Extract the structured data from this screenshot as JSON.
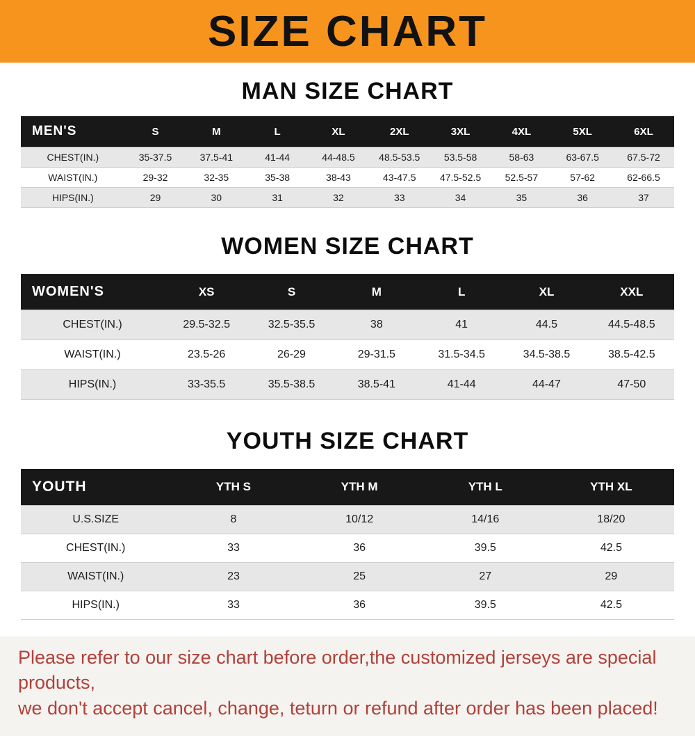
{
  "banner": {
    "title": "SIZE CHART"
  },
  "colors": {
    "banner_bg": "#f7941d",
    "header_bg": "#181818",
    "row_alt_bg": "#e7e7e7",
    "disclaimer_text": "#b0413b"
  },
  "chart_data": [
    {
      "type": "table",
      "title": "MAN SIZE CHART",
      "columns": [
        "MEN'S",
        "S",
        "M",
        "L",
        "XL",
        "2XL",
        "3XL",
        "4XL",
        "5XL",
        "6XL"
      ],
      "rows": [
        [
          "CHEST(IN.)",
          "35-37.5",
          "37.5-41",
          "41-44",
          "44-48.5",
          "48.5-53.5",
          "53.5-58",
          "58-63",
          "63-67.5",
          "67.5-72"
        ],
        [
          "WAIST(IN.)",
          "29-32",
          "32-35",
          "35-38",
          "38-43",
          "43-47.5",
          "47.5-52.5",
          "52.5-57",
          "57-62",
          "62-66.5"
        ],
        [
          "HIPS(IN.)",
          "29",
          "30",
          "31",
          "32",
          "33",
          "34",
          "35",
          "36",
          "37"
        ]
      ]
    },
    {
      "type": "table",
      "title": "WOMEN SIZE CHART",
      "columns": [
        "WOMEN'S",
        "XS",
        "S",
        "M",
        "L",
        "XL",
        "XXL"
      ],
      "rows": [
        [
          "CHEST(IN.)",
          "29.5-32.5",
          "32.5-35.5",
          "38",
          "41",
          "44.5",
          "44.5-48.5"
        ],
        [
          "WAIST(IN.)",
          "23.5-26",
          "26-29",
          "29-31.5",
          "31.5-34.5",
          "34.5-38.5",
          "38.5-42.5"
        ],
        [
          "HIPS(IN.)",
          "33-35.5",
          "35.5-38.5",
          "38.5-41",
          "41-44",
          "44-47",
          "47-50"
        ]
      ]
    },
    {
      "type": "table",
      "title": "YOUTH SIZE CHART",
      "columns": [
        "YOUTH",
        "YTH S",
        "YTH M",
        "YTH L",
        "YTH XL"
      ],
      "rows": [
        [
          "U.S.SIZE",
          "8",
          "10/12",
          "14/16",
          "18/20"
        ],
        [
          "CHEST(IN.)",
          "33",
          "36",
          "39.5",
          "42.5"
        ],
        [
          "WAIST(IN.)",
          "23",
          "25",
          "27",
          "29"
        ],
        [
          "HIPS(IN.)",
          "33",
          "36",
          "39.5",
          "42.5"
        ]
      ]
    }
  ],
  "disclaimer": {
    "lines": [
      "Please refer to our size chart before order,the customized jerseys are special products,",
      "we don't accept cancel, change, teturn or refund after order has been placed!"
    ]
  }
}
